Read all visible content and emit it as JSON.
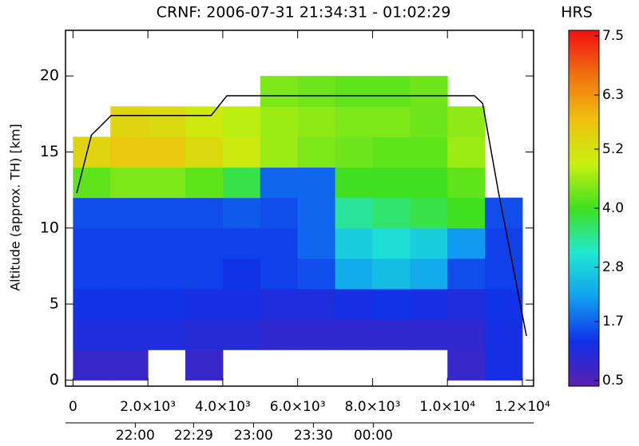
{
  "chart_data": {
    "type": "heatmap",
    "title": "CRNF: 2006-07-31 21:34:31 - 01:02:29",
    "title_unit": "HRS",
    "y_label": "Altitude (approx. TH) [km]",
    "xlim": [
      -200,
      12300
    ],
    "xticks": [
      0,
      {
        "value": 2000,
        "label": "2.0×10³"
      },
      {
        "value": 4000,
        "label": "4.0×10³"
      },
      {
        "value": 6000,
        "label": "6.0×10³"
      },
      {
        "value": 8000,
        "label": "8.0×10³"
      },
      {
        "value": 10000,
        "label": "1.0×10⁴"
      },
      {
        "value": 12000,
        "label": "1.2×10⁴"
      }
    ],
    "x2ticks": [
      {
        "value": 1663,
        "label": "22:00"
      },
      {
        "value": 3220,
        "label": "22:29"
      },
      {
        "value": 4820,
        "label": "23:00"
      },
      {
        "value": 6420,
        "label": "23:30"
      },
      {
        "value": 8020,
        "label": "00:00"
      }
    ],
    "ylim": [
      -0.4,
      23
    ],
    "yticks": [
      0,
      5,
      10,
      15,
      20
    ],
    "clim": [
      0.5,
      7.5
    ],
    "cticks": [
      0.5,
      1.7,
      2.8,
      {
        "value": 4.0,
        "label": "4.0"
      },
      5.2,
      6.3,
      7.5
    ],
    "colormap": [
      "#5a1fb0",
      "#1030e8",
      "#10a0f0",
      "#20e8d0",
      "#40e020",
      "#c8f010",
      "#f0c010",
      "#f07010",
      "#f01010"
    ],
    "field": {
      "x_edges": [
        0,
        1000,
        2000,
        3000,
        4000,
        5000,
        6000,
        7000,
        8000,
        9000,
        10000,
        11000,
        12000
      ],
      "y_edges": [
        0,
        2,
        4,
        6,
        8,
        10,
        12,
        14,
        16,
        18,
        20
      ],
      "values": [
        [
          0.9,
          0.9,
          null,
          0.9,
          null,
          null,
          null,
          null,
          null,
          null,
          0.9,
          1.3
        ],
        [
          1.2,
          1.2,
          1.2,
          1.1,
          1.1,
          1.0,
          1.0,
          1.0,
          1.0,
          1.0,
          1.0,
          1.3
        ],
        [
          1.4,
          1.4,
          1.4,
          1.3,
          1.3,
          1.2,
          1.2,
          1.3,
          1.4,
          1.3,
          1.2,
          1.4
        ],
        [
          1.5,
          1.5,
          1.5,
          1.5,
          1.4,
          1.5,
          1.6,
          2.4,
          2.6,
          2.4,
          1.6,
          1.5
        ],
        [
          1.5,
          1.5,
          1.5,
          1.5,
          1.5,
          1.5,
          1.8,
          2.8,
          3.0,
          2.8,
          2.2,
          1.5
        ],
        [
          1.6,
          1.6,
          1.6,
          1.6,
          1.7,
          1.6,
          1.8,
          3.4,
          3.6,
          3.8,
          4.0,
          1.6
        ],
        [
          4.2,
          4.4,
          4.4,
          4.2,
          3.8,
          1.8,
          1.8,
          4.0,
          4.0,
          4.0,
          4.2,
          null
        ],
        [
          5.4,
          5.6,
          5.6,
          5.3,
          5.0,
          4.6,
          4.4,
          4.3,
          4.2,
          4.2,
          4.6,
          null
        ],
        [
          null,
          5.4,
          5.3,
          5.0,
          4.8,
          4.6,
          4.5,
          4.4,
          4.4,
          4.3,
          4.5,
          null
        ],
        [
          null,
          null,
          null,
          null,
          null,
          4.4,
          4.3,
          4.2,
          4.2,
          4.3,
          null,
          null
        ]
      ]
    },
    "line": {
      "color": "#000000",
      "x": [
        100,
        490,
        1020,
        3690,
        4110,
        10720,
        10940,
        11360,
        12110
      ],
      "values": [
        12.3,
        16.1,
        17.4,
        17.4,
        18.7,
        18.7,
        18.2,
        12.4,
        2.9
      ]
    }
  }
}
